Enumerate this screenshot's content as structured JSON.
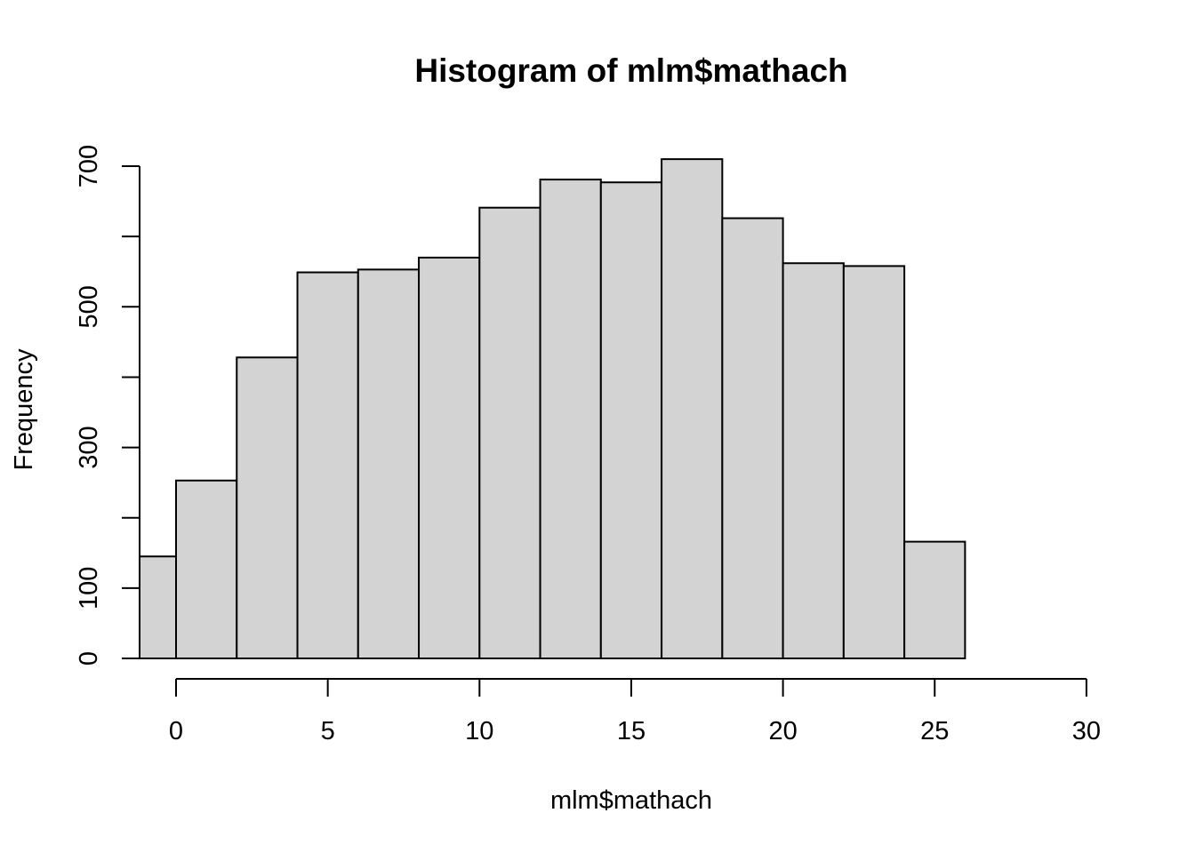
{
  "chart_data": {
    "type": "bar",
    "title": "Histogram of mlm$mathach",
    "xlabel": "mlm$mathach",
    "ylabel": "Frequency",
    "bins": [
      {
        "start": -2.832,
        "end": 0,
        "value": 145
      },
      {
        "start": 0,
        "end": 2,
        "value": 253
      },
      {
        "start": 2,
        "end": 4,
        "value": 428
      },
      {
        "start": 4,
        "end": 6,
        "value": 549
      },
      {
        "start": 6,
        "end": 8,
        "value": 553
      },
      {
        "start": 8,
        "end": 10,
        "value": 570
      },
      {
        "start": 10,
        "end": 12,
        "value": 641
      },
      {
        "start": 12,
        "end": 14,
        "value": 681
      },
      {
        "start": 14,
        "end": 16,
        "value": 677
      },
      {
        "start": 16,
        "end": 18,
        "value": 710
      },
      {
        "start": 18,
        "end": 20,
        "value": 626
      },
      {
        "start": 20,
        "end": 22,
        "value": 562
      },
      {
        "start": 22,
        "end": 24,
        "value": 558
      },
      {
        "start": 24,
        "end": 26,
        "value": 166
      }
    ],
    "x_ticks": [
      0,
      5,
      10,
      15,
      20,
      25,
      30
    ],
    "x_tick_labels": [
      "0",
      "5",
      "10",
      "15",
      "20",
      "25",
      "30"
    ],
    "y_ticks": [
      0,
      100,
      200,
      300,
      400,
      500,
      600,
      700
    ],
    "y_tick_labels": [
      "0",
      "100",
      "",
      "300",
      "",
      "500",
      "",
      "700"
    ],
    "xlim": [
      -1.2,
      30
    ],
    "ylim": [
      0,
      700
    ],
    "grid": false,
    "colors": {
      "bar_fill": "#d3d3d3",
      "bar_stroke": "#000000"
    }
  }
}
